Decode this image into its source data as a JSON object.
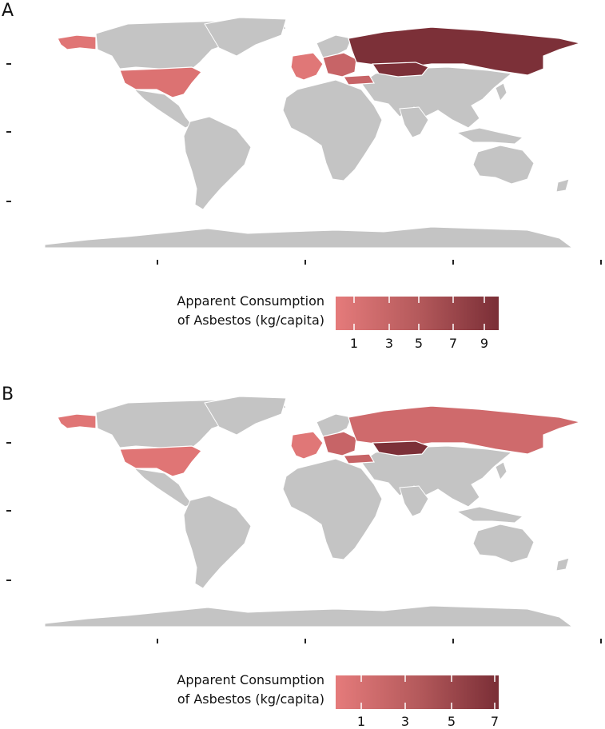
{
  "panels": [
    {
      "letter": "A",
      "legend": {
        "title_line1": "Apparent Consumption",
        "title_line2": "of Asbestos (kg/capita)",
        "ticks": [
          "1",
          "3",
          "5",
          "7",
          "9"
        ]
      }
    },
    {
      "letter": "B",
      "legend": {
        "title_line1": "Apparent Consumption",
        "title_line2": "of Asbestos (kg/capita)",
        "ticks": [
          "1",
          "3",
          "5",
          "7"
        ]
      }
    }
  ],
  "colors": {
    "land": "#c4c4c4",
    "low": "#e57b7b",
    "mid": "#b55a5c",
    "high": "#7e3038",
    "border": "#ffffff"
  },
  "chart_data": [
    {
      "type": "choropleth-map",
      "panel": "A",
      "legend_title": "Apparent Consumption of Asbestos (kg/capita)",
      "scale_range": [
        0.5,
        10
      ],
      "legend_ticks": [
        1,
        3,
        5,
        7,
        9
      ],
      "regions": [
        {
          "region": "Russia",
          "value": 9
        },
        {
          "region": "Kazakhstan",
          "value": 9
        },
        {
          "region": "United States",
          "value": 2
        },
        {
          "region": "Alaska",
          "value": 1.5
        },
        {
          "region": "Western Europe",
          "value": 1.5
        },
        {
          "region": "Eastern Europe",
          "value": 2.5
        }
      ]
    },
    {
      "type": "choropleth-map",
      "panel": "B",
      "legend_title": "Apparent Consumption of Asbestos (kg/capita)",
      "scale_range": [
        0,
        7.2
      ],
      "legend_ticks": [
        1,
        3,
        5,
        7
      ],
      "regions": [
        {
          "region": "Russia",
          "value": 3.5
        },
        {
          "region": "Kazakhstan",
          "value": 6.5
        },
        {
          "region": "United States",
          "value": 1.2
        },
        {
          "region": "Alaska",
          "value": 1.2
        },
        {
          "region": "Western Europe",
          "value": 1.5
        },
        {
          "region": "Eastern Europe",
          "value": 2.5
        }
      ]
    }
  ]
}
